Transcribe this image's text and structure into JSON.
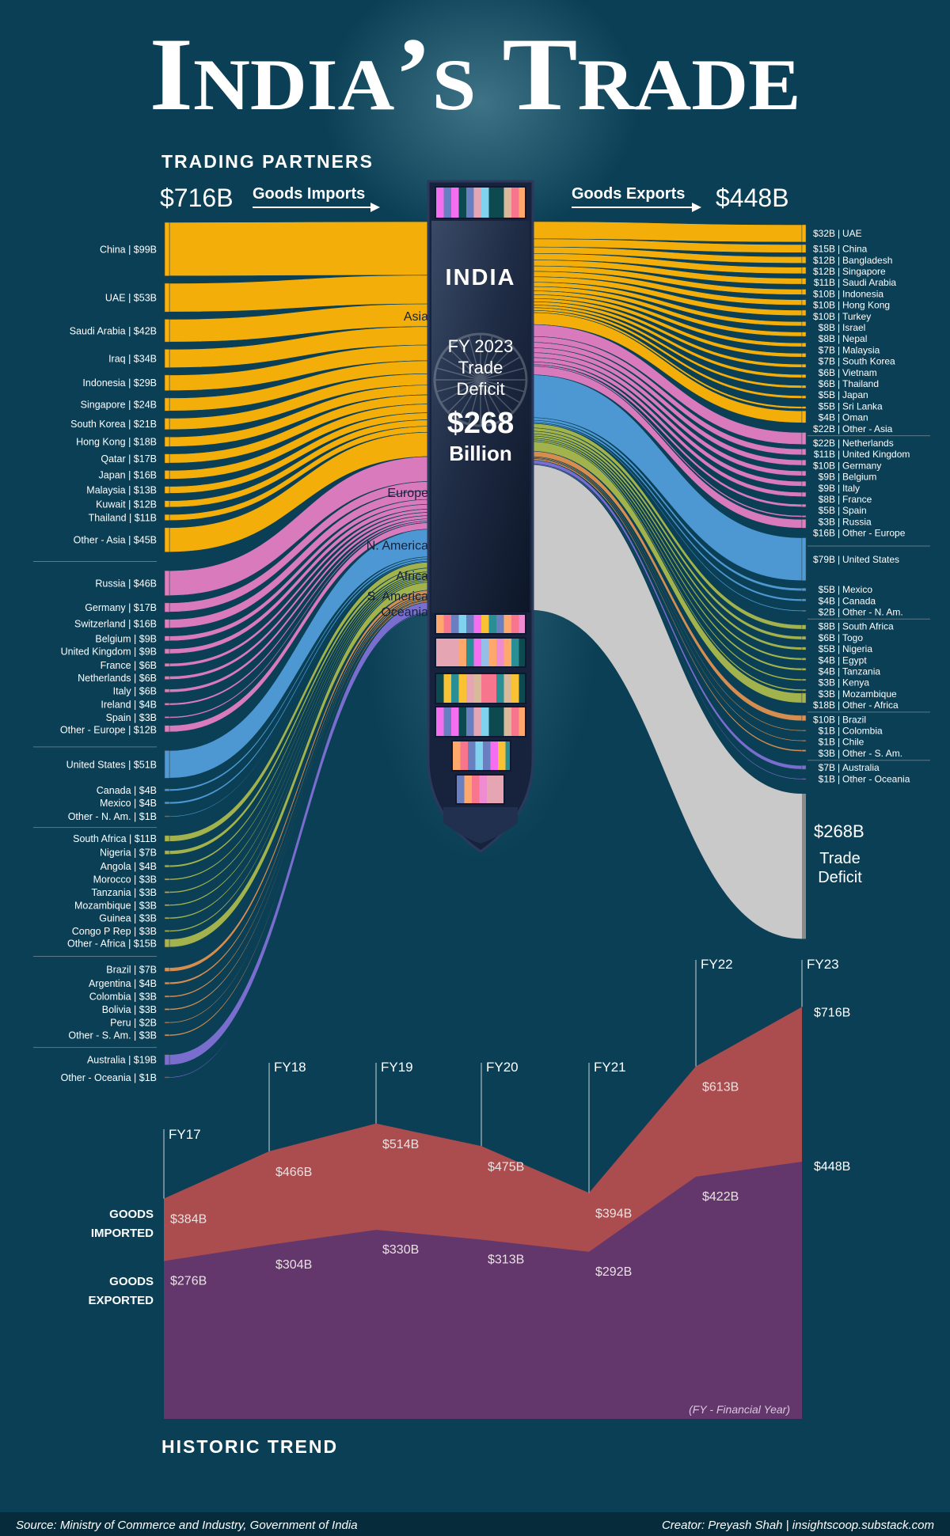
{
  "title": "India’s Trade",
  "subtitle": "TRADING PARTNERS",
  "imports_total": "$716B",
  "imports_title": "Goods Imports",
  "exports_total": "$448B",
  "exports_title": "Goods Exports",
  "ship": {
    "country": "INDIA",
    "line1": "FY 2023",
    "line2": "Trade",
    "line3": "Deficit",
    "amount": "$268",
    "unit": "Billion"
  },
  "deficit": {
    "value": 268,
    "label": "$268B",
    "line1": "Trade",
    "line2": "Deficit",
    "color": "#c9c9c9"
  },
  "chart_data": [
    {
      "type": "sankey",
      "imports": [
        {
          "name": "Asia",
          "color": "#fbb208",
          "items": [
            {
              "label": "China | $99B",
              "value": 99
            },
            {
              "label": "UAE | $53B",
              "value": 53
            },
            {
              "label": "Saudi Arabia | $42B",
              "value": 42
            },
            {
              "label": "Iraq | $34B",
              "value": 34
            },
            {
              "label": "Indonesia | $29B",
              "value": 29
            },
            {
              "label": "Singapore | $24B",
              "value": 24
            },
            {
              "label": "South Korea | $21B",
              "value": 21
            },
            {
              "label": "Hong Kong | $18B",
              "value": 18
            },
            {
              "label": "Qatar | $17B",
              "value": 17
            },
            {
              "label": "Japan | $16B",
              "value": 16
            },
            {
              "label": "Malaysia | $13B",
              "value": 13
            },
            {
              "label": "Kuwait | $12B",
              "value": 12
            },
            {
              "label": "Thailand | $11B",
              "value": 11
            },
            {
              "label": "Other - Asia | $45B",
              "value": 45
            }
          ]
        },
        {
          "name": "Europe",
          "color": "#e07cc0",
          "items": [
            {
              "label": "Russia | $46B",
              "value": 46
            },
            {
              "label": "Germany | $17B",
              "value": 17
            },
            {
              "label": "Switzerland | $16B",
              "value": 16
            },
            {
              "label": "Belgium | $9B",
              "value": 9
            },
            {
              "label": "United Kingdom | $9B",
              "value": 9
            },
            {
              "label": "France | $6B",
              "value": 6
            },
            {
              "label": "Netherlands | $6B",
              "value": 6
            },
            {
              "label": "Italy | $6B",
              "value": 6
            },
            {
              "label": "Ireland | $4B",
              "value": 4
            },
            {
              "label": "Spain | $3B",
              "value": 3
            },
            {
              "label": "Other - Europe | $12B",
              "value": 12
            }
          ]
        },
        {
          "name": "N. America",
          "color": "#4f9bd8",
          "items": [
            {
              "label": "United States | $51B",
              "value": 51
            },
            {
              "label": "Canada | $4B",
              "value": 4
            },
            {
              "label": "Mexico | $4B",
              "value": 4
            },
            {
              "label": "Other - N. Am. | $1B",
              "value": 1
            }
          ]
        },
        {
          "name": "Africa",
          "color": "#a7b64c",
          "items": [
            {
              "label": "South Africa | $11B",
              "value": 11
            },
            {
              "label": "Nigeria | $7B",
              "value": 7
            },
            {
              "label": "Angola | $4B",
              "value": 4
            },
            {
              "label": "Morocco | $3B",
              "value": 3
            },
            {
              "label": "Tanzania | $3B",
              "value": 3
            },
            {
              "label": "Mozambique | $3B",
              "value": 3
            },
            {
              "label": "Guinea | $3B",
              "value": 3
            },
            {
              "label": "Congo P Rep | $3B",
              "value": 3
            },
            {
              "label": "Other - Africa | $15B",
              "value": 15
            }
          ]
        },
        {
          "name": "S. America",
          "color": "#dc9150",
          "items": [
            {
              "label": "Brazil | $7B",
              "value": 7
            },
            {
              "label": "Argentina | $4B",
              "value": 4
            },
            {
              "label": "Colombia | $3B",
              "value": 3
            },
            {
              "label": "Bolivia | $3B",
              "value": 3
            },
            {
              "label": "Peru | $2B",
              "value": 2
            },
            {
              "label": "Other - S. Am. | $3B",
              "value": 3
            }
          ]
        },
        {
          "name": "Oceania",
          "color": "#7d70d2",
          "items": [
            {
              "label": "Australia | $19B",
              "value": 19
            },
            {
              "label": "Other - Oceania | $1B",
              "value": 1
            }
          ]
        }
      ],
      "exports": [
        {
          "name": "Asia",
          "color": "#fbb208",
          "items": [
            {
              "value_label": "$32B",
              "name": "UAE",
              "value": 32
            },
            {
              "value_label": "$15B",
              "name": "China",
              "value": 15
            },
            {
              "value_label": "$12B",
              "name": "Bangladesh",
              "value": 12
            },
            {
              "value_label": "$12B",
              "name": "Singapore",
              "value": 12
            },
            {
              "value_label": "$11B",
              "name": "Saudi Arabia",
              "value": 11
            },
            {
              "value_label": "$10B",
              "name": "Indonesia",
              "value": 10
            },
            {
              "value_label": "$10B",
              "name": "Hong Kong",
              "value": 10
            },
            {
              "value_label": "$10B",
              "name": "Turkey",
              "value": 10
            },
            {
              "value_label": "$8B",
              "name": "Israel",
              "value": 8
            },
            {
              "value_label": "$8B",
              "name": "Nepal",
              "value": 8
            },
            {
              "value_label": "$7B",
              "name": "Malaysia",
              "value": 7
            },
            {
              "value_label": "$7B",
              "name": "South Korea",
              "value": 7
            },
            {
              "value_label": "$6B",
              "name": "Vietnam",
              "value": 6
            },
            {
              "value_label": "$6B",
              "name": "Thailand",
              "value": 6
            },
            {
              "value_label": "$5B",
              "name": "Japan",
              "value": 5
            },
            {
              "value_label": "$5B",
              "name": "Sri Lanka",
              "value": 5
            },
            {
              "value_label": "$4B",
              "name": "Oman",
              "value": 4
            },
            {
              "value_label": "$22B",
              "name": "Other - Asia",
              "value": 22
            }
          ]
        },
        {
          "name": "Europe",
          "color": "#e07cc0",
          "items": [
            {
              "value_label": "$22B",
              "name": "Netherlands",
              "value": 22
            },
            {
              "value_label": "$11B",
              "name": "United Kingdom",
              "value": 11
            },
            {
              "value_label": "$10B",
              "name": "Germany",
              "value": 10
            },
            {
              "value_label": "$9B",
              "name": "Belgium",
              "value": 9
            },
            {
              "value_label": "$9B",
              "name": "Italy",
              "value": 9
            },
            {
              "value_label": "$8B",
              "name": "France",
              "value": 8
            },
            {
              "value_label": "$5B",
              "name": "Spain",
              "value": 5
            },
            {
              "value_label": "$3B",
              "name": "Russia",
              "value": 3
            },
            {
              "value_label": "$16B",
              "name": "Other - Europe",
              "value": 16
            }
          ]
        },
        {
          "name": "N. America",
          "color": "#4f9bd8",
          "items": [
            {
              "value_label": "$79B",
              "name": "United States",
              "value": 79
            },
            {
              "value_label": "$5B",
              "name": "Mexico",
              "value": 5
            },
            {
              "value_label": "$4B",
              "name": "Canada",
              "value": 4
            },
            {
              "value_label": "$2B",
              "name": "Other - N. Am.",
              "value": 2
            }
          ]
        },
        {
          "name": "Africa",
          "color": "#a7b64c",
          "items": [
            {
              "value_label": "$8B",
              "name": "South Africa",
              "value": 8
            },
            {
              "value_label": "$6B",
              "name": "Togo",
              "value": 6
            },
            {
              "value_label": "$5B",
              "name": "Nigeria",
              "value": 5
            },
            {
              "value_label": "$4B",
              "name": "Egypt",
              "value": 4
            },
            {
              "value_label": "$4B",
              "name": "Tanzania",
              "value": 4
            },
            {
              "value_label": "$3B",
              "name": "Kenya",
              "value": 3
            },
            {
              "value_label": "$3B",
              "name": "Mozambique",
              "value": 3
            },
            {
              "value_label": "$18B",
              "name": "Other - Africa",
              "value": 18
            }
          ]
        },
        {
          "name": "S. America",
          "color": "#dc9150",
          "items": [
            {
              "value_label": "$10B",
              "name": "Brazil",
              "value": 10
            },
            {
              "value_label": "$1B",
              "name": "Colombia",
              "value": 1
            },
            {
              "value_label": "$1B",
              "name": "Chile",
              "value": 1
            },
            {
              "value_label": "$3B",
              "name": "Other - S. Am.",
              "value": 3
            }
          ]
        },
        {
          "name": "Oceania",
          "color": "#7d70d2",
          "items": [
            {
              "value_label": "$7B",
              "name": "Australia",
              "value": 7
            },
            {
              "value_label": "$1B",
              "name": "Other - Oceania",
              "value": 1
            }
          ]
        }
      ]
    },
    {
      "type": "area",
      "title": "HISTORIC TREND",
      "categories": [
        "FY17",
        "FY18",
        "FY19",
        "FY20",
        "FY21",
        "FY22",
        "FY23"
      ],
      "series": [
        {
          "name": "GOODS IMPORTED",
          "color": "#ab4c4e",
          "values": [
            384,
            466,
            514,
            475,
            394,
            613,
            716
          ],
          "labels": [
            "$384B",
            "$466B",
            "$514B",
            "$475B",
            "$394B",
            "$613B",
            "$716B"
          ]
        },
        {
          "name": "GOODS EXPORTED",
          "color": "#63366c",
          "values": [
            276,
            304,
            330,
            313,
            292,
            422,
            448
          ],
          "labels": [
            "$276B",
            "$304B",
            "$330B",
            "$313B",
            "$292B",
            "$422B",
            "$448B"
          ]
        }
      ],
      "ylim": [
        0,
        716
      ],
      "note": "(FY - Financial Year)",
      "imports_label": [
        "GOODS",
        "IMPORTED"
      ],
      "exports_label": [
        "GOODS",
        "EXPORTED"
      ]
    }
  ],
  "footer": {
    "source": "Source: Ministry of Commerce and Industry, Government of India",
    "creator": "Creator: Preyash Shah | insightscoop.substack.com"
  }
}
